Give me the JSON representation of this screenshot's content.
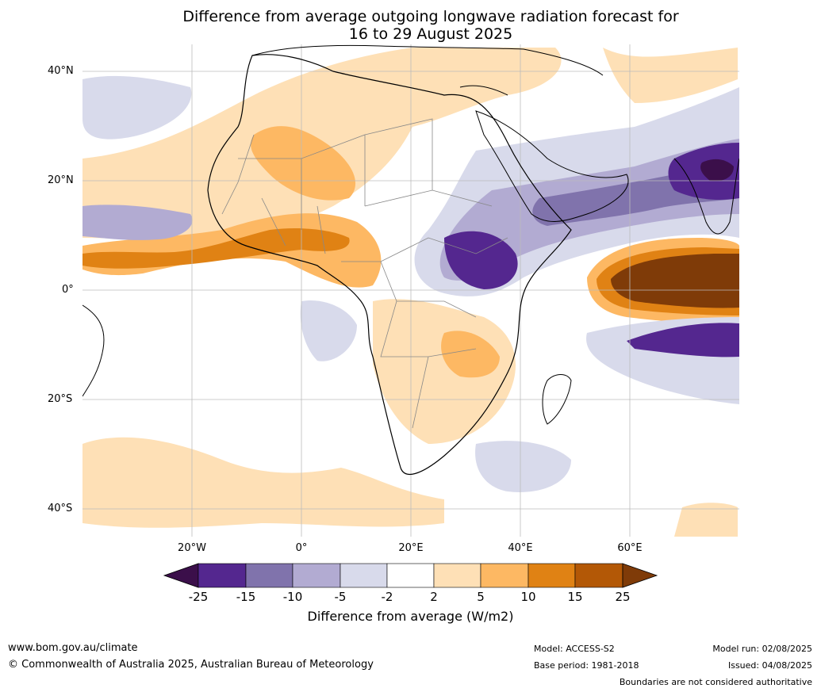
{
  "title_line1": "Difference from average outgoing longwave radiation forecast for",
  "title_line2": "16 to 29 August 2025",
  "lat_labels": [
    "40°N",
    "20°N",
    "0°",
    "20°S",
    "40°S"
  ],
  "lon_labels": [
    "20°W",
    "0°",
    "20°E",
    "40°E",
    "60°E"
  ],
  "colorbar": {
    "ticks": [
      "-25",
      "-15",
      "-10",
      "-5",
      "-2",
      "2",
      "5",
      "10",
      "15",
      "25"
    ],
    "colors": [
      "#3b0f4a",
      "#54278f",
      "#8073ac",
      "#b2abd2",
      "#d8daeb",
      "#ffffff",
      "#fee0b6",
      "#fdb863",
      "#e08214",
      "#b35806",
      "#7f3b08"
    ],
    "title": "Difference from average (W/m2)"
  },
  "footer": {
    "website": "www.bom.gov.au/climate",
    "copyright": "© Commonwealth of Australia 2025, Australian Bureau of Meteorology",
    "model": "Model: ACCESS-S2",
    "base_period": "Base period: 1981-2018",
    "model_run": "Model run: 02/08/2025",
    "issued": "Issued: 04/08/2025",
    "disclaimer": "Boundaries are not considered authoritative"
  }
}
